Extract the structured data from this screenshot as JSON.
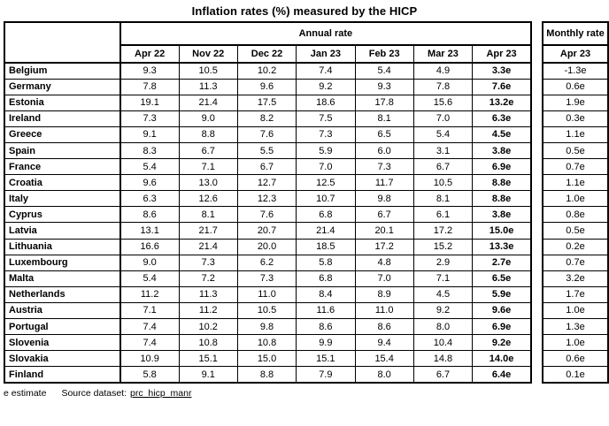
{
  "title": "Inflation rates (%) measured by the HICP",
  "annual_table": {
    "group_label": "Annual rate",
    "month_headers": [
      "Apr 22",
      "Nov 22",
      "Dec 22",
      "Jan 23",
      "Feb 23",
      "Mar 23",
      "Apr 23"
    ]
  },
  "monthly_table": {
    "group_label": "Monthly rate",
    "month_header": "Apr 23"
  },
  "footer": {
    "estimate_note": "e estimate",
    "source_label": "Source dataset:",
    "source_link": "prc_hicp_manr"
  },
  "chart_data": {
    "type": "table",
    "title": "Inflation rates (%) measured by the HICP",
    "column_groups": [
      "Annual rate",
      "Monthly rate"
    ],
    "annual_columns": [
      "Apr 22",
      "Nov 22",
      "Dec 22",
      "Jan 23",
      "Feb 23",
      "Mar 23",
      "Apr 23"
    ],
    "monthly_column": "Apr 23",
    "note": "e = estimate; values ending in 'e' are estimates",
    "rows": [
      {
        "country": "Belgium",
        "annual": [
          "9.3",
          "10.5",
          "10.2",
          "7.4",
          "5.4",
          "4.9",
          "3.3e"
        ],
        "monthly": "-1.3e"
      },
      {
        "country": "Germany",
        "annual": [
          "7.8",
          "11.3",
          "9.6",
          "9.2",
          "9.3",
          "7.8",
          "7.6e"
        ],
        "monthly": "0.6e"
      },
      {
        "country": "Estonia",
        "annual": [
          "19.1",
          "21.4",
          "17.5",
          "18.6",
          "17.8",
          "15.6",
          "13.2e"
        ],
        "monthly": "1.9e"
      },
      {
        "country": "Ireland",
        "annual": [
          "7.3",
          "9.0",
          "8.2",
          "7.5",
          "8.1",
          "7.0",
          "6.3e"
        ],
        "monthly": "0.3e"
      },
      {
        "country": "Greece",
        "annual": [
          "9.1",
          "8.8",
          "7.6",
          "7.3",
          "6.5",
          "5.4",
          "4.5e"
        ],
        "monthly": "1.1e"
      },
      {
        "country": "Spain",
        "annual": [
          "8.3",
          "6.7",
          "5.5",
          "5.9",
          "6.0",
          "3.1",
          "3.8e"
        ],
        "monthly": "0.5e"
      },
      {
        "country": "France",
        "annual": [
          "5.4",
          "7.1",
          "6.7",
          "7.0",
          "7.3",
          "6.7",
          "6.9e"
        ],
        "monthly": "0.7e"
      },
      {
        "country": "Croatia",
        "annual": [
          "9.6",
          "13.0",
          "12.7",
          "12.5",
          "11.7",
          "10.5",
          "8.8e"
        ],
        "monthly": "1.1e"
      },
      {
        "country": "Italy",
        "annual": [
          "6.3",
          "12.6",
          "12.3",
          "10.7",
          "9.8",
          "8.1",
          "8.8e"
        ],
        "monthly": "1.0e"
      },
      {
        "country": "Cyprus",
        "annual": [
          "8.6",
          "8.1",
          "7.6",
          "6.8",
          "6.7",
          "6.1",
          "3.8e"
        ],
        "monthly": "0.8e"
      },
      {
        "country": "Latvia",
        "annual": [
          "13.1",
          "21.7",
          "20.7",
          "21.4",
          "20.1",
          "17.2",
          "15.0e"
        ],
        "monthly": "0.5e"
      },
      {
        "country": "Lithuania",
        "annual": [
          "16.6",
          "21.4",
          "20.0",
          "18.5",
          "17.2",
          "15.2",
          "13.3e"
        ],
        "monthly": "0.2e"
      },
      {
        "country": "Luxembourg",
        "annual": [
          "9.0",
          "7.3",
          "6.2",
          "5.8",
          "4.8",
          "2.9",
          "2.7e"
        ],
        "monthly": "0.7e"
      },
      {
        "country": "Malta",
        "annual": [
          "5.4",
          "7.2",
          "7.3",
          "6.8",
          "7.0",
          "7.1",
          "6.5e"
        ],
        "monthly": "3.2e"
      },
      {
        "country": "Netherlands",
        "annual": [
          "11.2",
          "11.3",
          "11.0",
          "8.4",
          "8.9",
          "4.5",
          "5.9e"
        ],
        "monthly": "1.7e"
      },
      {
        "country": "Austria",
        "annual": [
          "7.1",
          "11.2",
          "10.5",
          "11.6",
          "11.0",
          "9.2",
          "9.6e"
        ],
        "monthly": "1.0e"
      },
      {
        "country": "Portugal",
        "annual": [
          "7.4",
          "10.2",
          "9.8",
          "8.6",
          "8.6",
          "8.0",
          "6.9e"
        ],
        "monthly": "1.3e"
      },
      {
        "country": "Slovenia",
        "annual": [
          "7.4",
          "10.8",
          "10.8",
          "9.9",
          "9.4",
          "10.4",
          "9.2e"
        ],
        "monthly": "1.0e"
      },
      {
        "country": "Slovakia",
        "annual": [
          "10.9",
          "15.1",
          "15.0",
          "15.1",
          "15.4",
          "14.8",
          "14.0e"
        ],
        "monthly": "0.6e"
      },
      {
        "country": "Finland",
        "annual": [
          "5.8",
          "9.1",
          "8.8",
          "7.9",
          "8.0",
          "6.7",
          "6.4e"
        ],
        "monthly": "0.1e"
      }
    ]
  }
}
